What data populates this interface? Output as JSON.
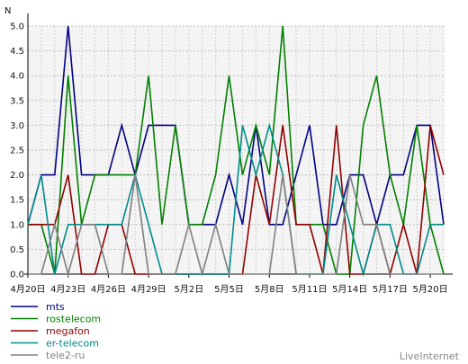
{
  "chart_data": {
    "type": "line",
    "ylabel": "N",
    "ylim": [
      0,
      5
    ],
    "yticks": [
      "0.0",
      "0.5",
      "1.0",
      "1.5",
      "2.0",
      "2.5",
      "3.0",
      "3.5",
      "4.0",
      "4.5",
      "5.0"
    ],
    "xtick_labels": [
      "4月20日",
      "4月23日",
      "4月26日",
      "4月29日",
      "5月2日",
      "5月5日",
      "5月8日",
      "5月11日",
      "5月14日",
      "5月17日",
      "5月20日"
    ],
    "grid": true,
    "background": "#f4f4f4",
    "legend_position": "bottom-left",
    "series": [
      {
        "name": "mts",
        "color": "#000080",
        "values": [
          1,
          2,
          2,
          5,
          2,
          2,
          2,
          3,
          2,
          3,
          3,
          3,
          1,
          1,
          1,
          2,
          1,
          3,
          1,
          1,
          2,
          3,
          1,
          1,
          2,
          2,
          1,
          2,
          2,
          3,
          3,
          1
        ]
      },
      {
        "name": "rostelecom",
        "color": "#008000",
        "values": [
          1,
          1,
          0,
          4,
          1,
          2,
          2,
          2,
          2,
          4,
          1,
          3,
          1,
          1,
          2,
          4,
          2,
          3,
          2,
          5,
          1,
          1,
          1,
          0,
          0,
          3,
          4,
          2,
          1,
          3,
          1,
          0
        ]
      },
      {
        "name": "megafon",
        "color": "#900000",
        "values": [
          1,
          1,
          1,
          2,
          0,
          0,
          1,
          1,
          0,
          0,
          0,
          0,
          0,
          0,
          0,
          0,
          0,
          2,
          1,
          3,
          1,
          1,
          0,
          3,
          0,
          0,
          1,
          0,
          1,
          0,
          3,
          2
        ]
      },
      {
        "name": "er-telecom",
        "color": "#008b8b",
        "values": [
          1,
          2,
          0,
          1,
          1,
          1,
          1,
          1,
          2,
          1,
          0,
          0,
          0,
          0,
          0,
          0,
          3,
          2,
          3,
          2,
          0,
          0,
          0,
          2,
          1,
          0,
          1,
          1,
          0,
          0,
          1,
          1
        ]
      },
      {
        "name": "tele2-ru",
        "color": "#808080",
        "values": [
          0,
          0,
          1,
          0,
          1,
          1,
          0,
          0,
          2,
          0,
          0,
          0,
          1,
          0,
          1,
          0,
          0,
          0,
          0,
          2,
          0,
          0,
          0,
          0,
          2,
          1,
          1,
          0,
          0,
          0,
          0,
          0
        ]
      }
    ]
  },
  "credit": "LiveInternet"
}
